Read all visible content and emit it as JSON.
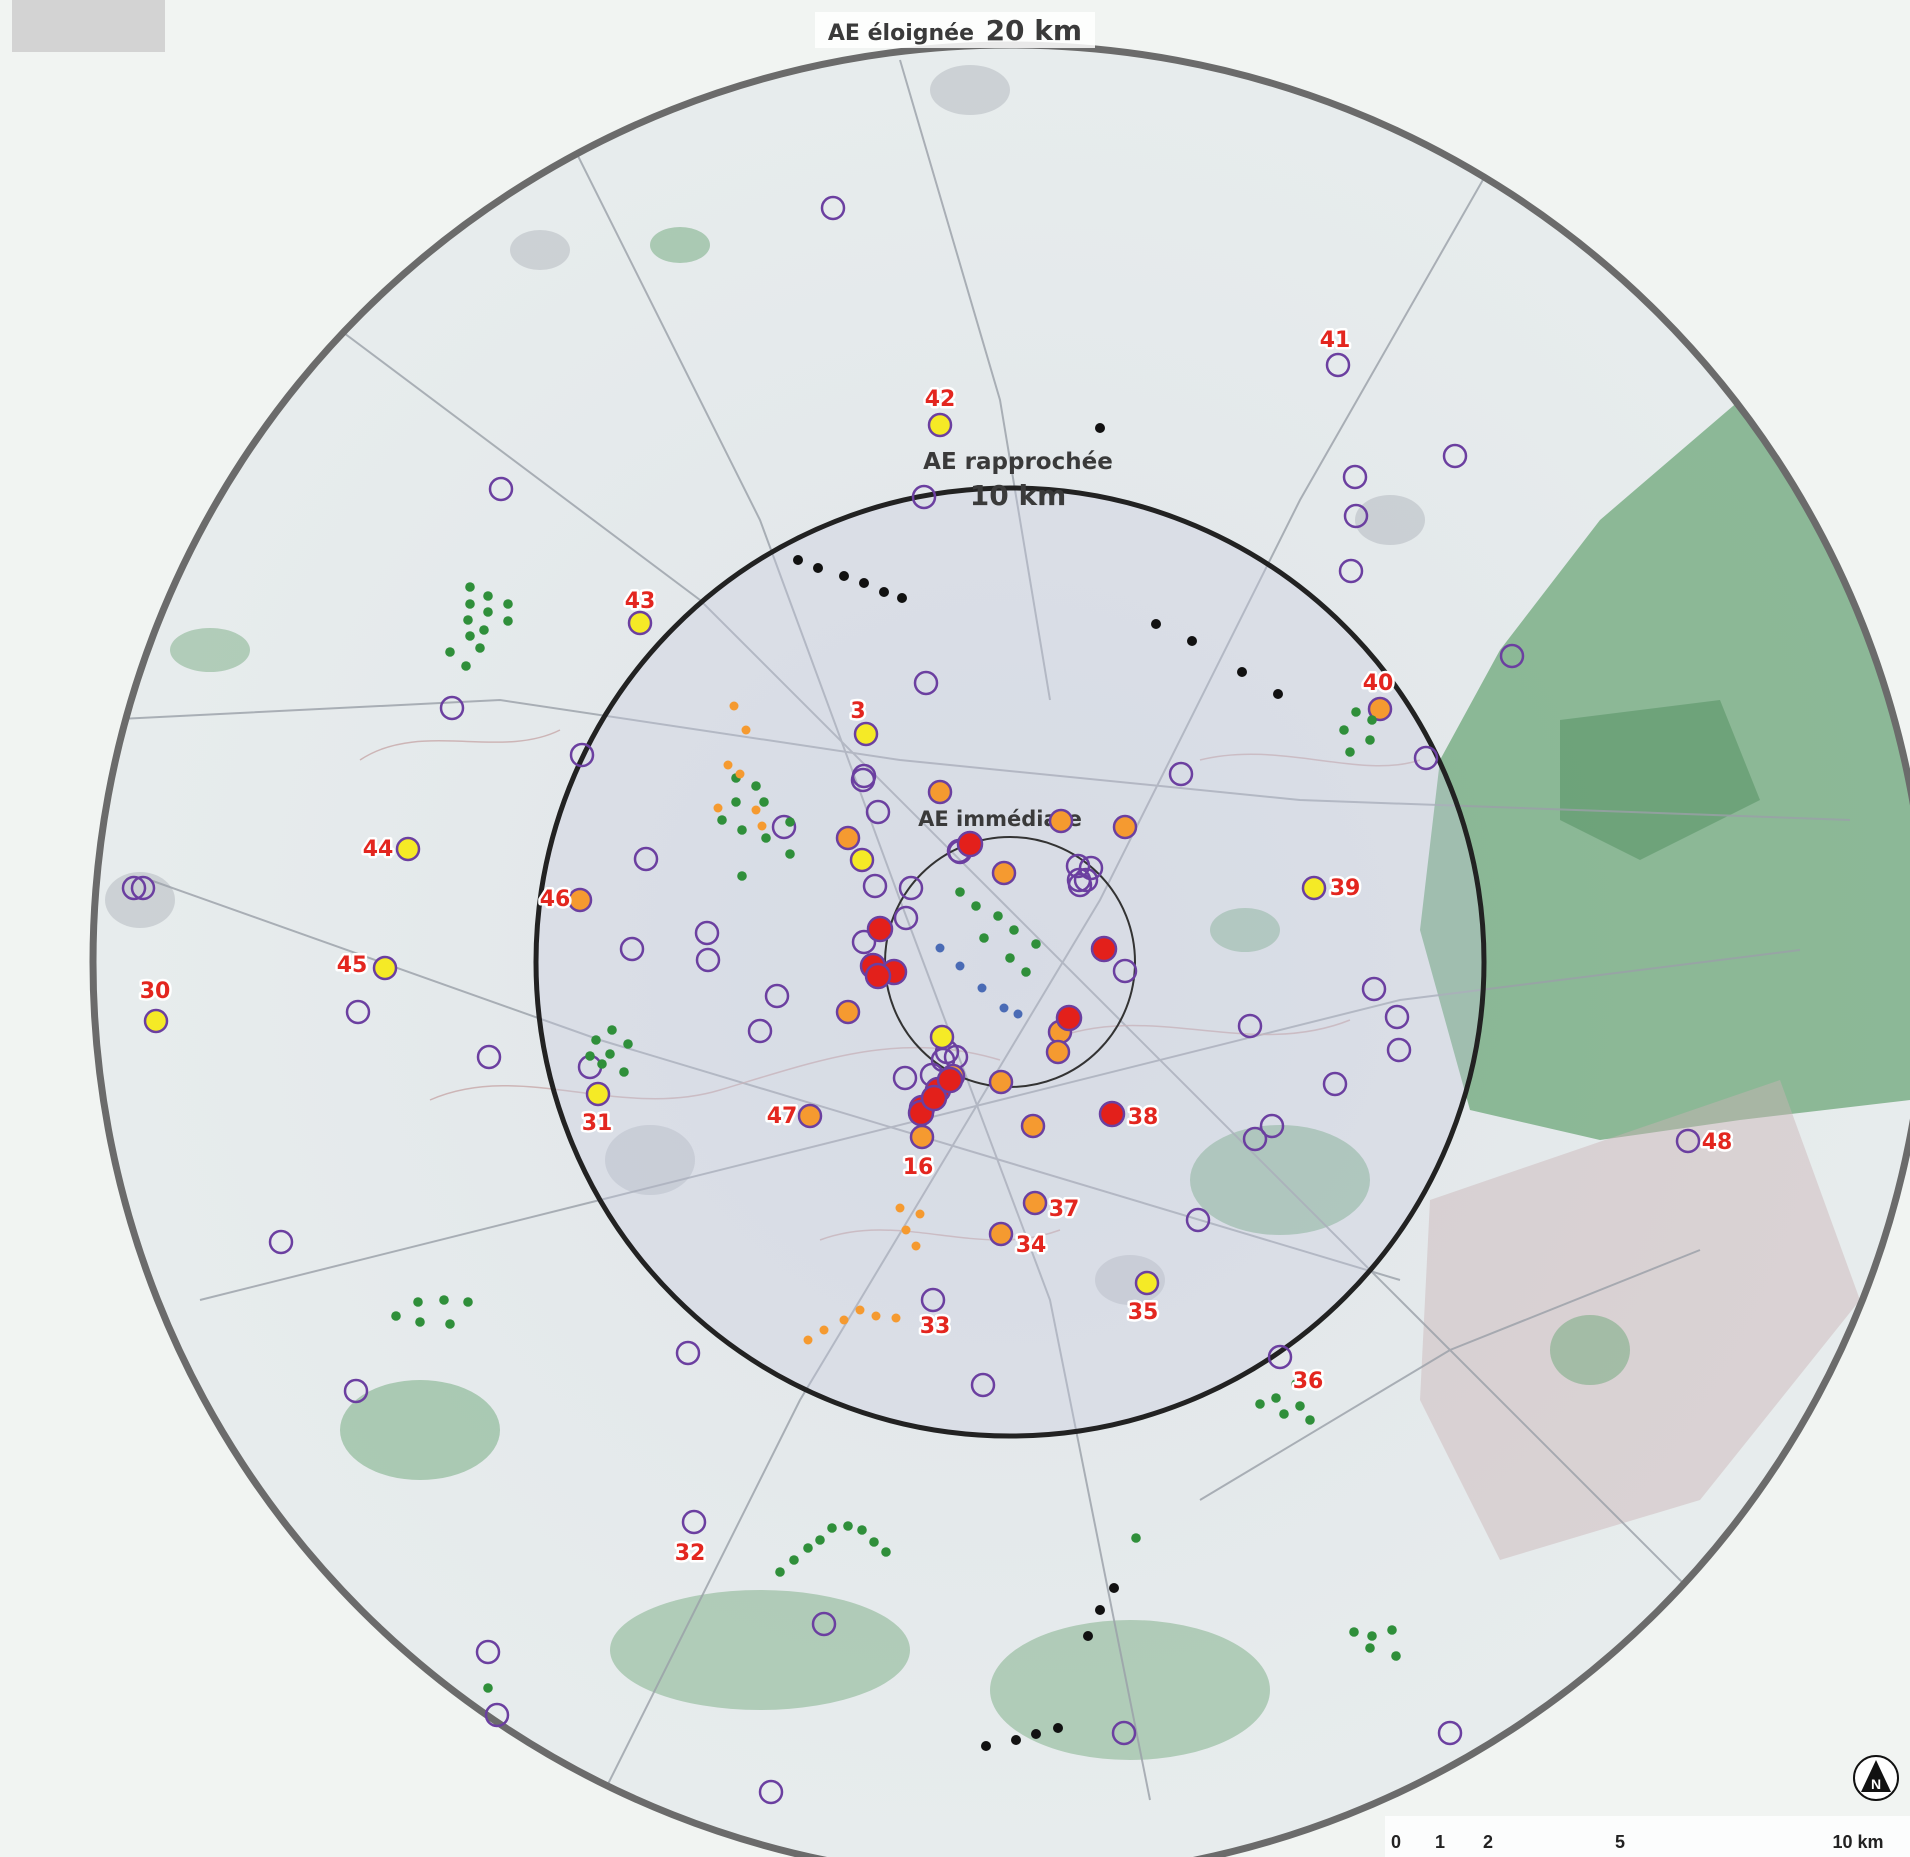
{
  "corner_badge": "",
  "rings": {
    "far": {
      "prefix": "AE éloignée",
      "distance": "20 km"
    },
    "near": {
      "prefix": "AE rapprochée",
      "distance": "10 km"
    },
    "immediate": {
      "label": "AE immédiate"
    }
  },
  "labels": [
    "42",
    "43",
    "3",
    "41",
    "40",
    "44",
    "46",
    "39",
    "45",
    "30",
    "31",
    "47",
    "16",
    "38",
    "48",
    "37",
    "34",
    "33",
    "35",
    "36",
    "32"
  ],
  "scale": {
    "ticks": [
      "0",
      "1",
      "2",
      "5",
      "10 km"
    ]
  },
  "north": "N",
  "colors": {
    "red": "#e3201b",
    "orange": "#f59a30",
    "yellow": "#f5ea26",
    "purple": "#6b3fa0",
    "green": "#2f8f3a",
    "black": "#111111",
    "blue": "#4a6bb5"
  }
}
